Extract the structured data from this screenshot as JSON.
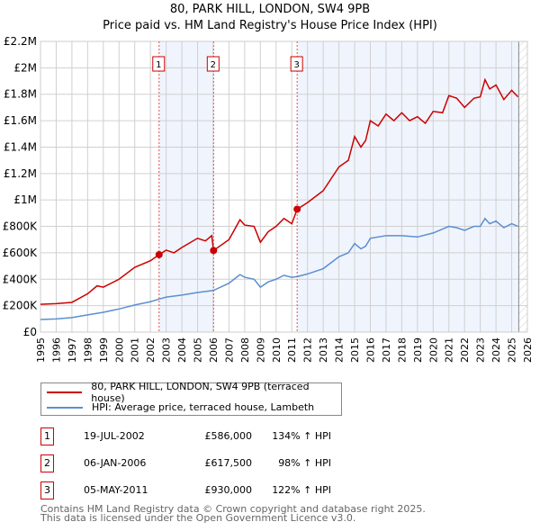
{
  "title": "80, PARK HILL, LONDON, SW4 9PB",
  "subtitle": "Price paid vs. HM Land Registry's House Price Index (HPI)",
  "chart_data": {
    "type": "line",
    "xlim": [
      1995,
      2026
    ],
    "ylim": [
      0,
      2200000
    ],
    "x_ticks": [
      "1995",
      "1996",
      "1997",
      "1998",
      "1999",
      "2000",
      "2001",
      "2002",
      "2003",
      "2004",
      "2005",
      "2006",
      "2007",
      "2008",
      "2009",
      "2010",
      "2011",
      "2012",
      "2013",
      "2014",
      "2015",
      "2016",
      "2017",
      "2018",
      "2019",
      "2020",
      "2021",
      "2022",
      "2023",
      "2024",
      "2025",
      "2026"
    ],
    "y_ticks": [
      {
        "v": 0,
        "l": "£0"
      },
      {
        "v": 200000,
        "l": "£200K"
      },
      {
        "v": 400000,
        "l": "£400K"
      },
      {
        "v": 600000,
        "l": "£600K"
      },
      {
        "v": 800000,
        "l": "£800K"
      },
      {
        "v": 1000000,
        "l": "£1M"
      },
      {
        "v": 1200000,
        "l": "£1.2M"
      },
      {
        "v": 1400000,
        "l": "£1.4M"
      },
      {
        "v": 1600000,
        "l": "£1.6M"
      },
      {
        "v": 1800000,
        "l": "£1.8M"
      },
      {
        "v": 2000000,
        "l": "£2M"
      },
      {
        "v": 2200000,
        "l": "£2.2M"
      }
    ],
    "grid": true,
    "data_end": 2025.45,
    "series": [
      {
        "name": "80, PARK HILL, LONDON, SW4 9PB (terraced house)",
        "color": "#cc0000",
        "x": [
          1995,
          1996,
          1997,
          1998,
          1998.6,
          1999,
          2000,
          2001,
          2002,
          2002.55,
          2003,
          2003.5,
          2004,
          2005,
          2005.5,
          2005.9,
          2006.02,
          2007,
          2007.7,
          2008,
          2008.6,
          2009,
          2009.5,
          2010,
          2010.5,
          2011,
          2011.34,
          2012,
          2013,
          2014,
          2014.6,
          2015,
          2015.4,
          2015.7,
          2016,
          2016.5,
          2017,
          2017.5,
          2018,
          2018.5,
          2019,
          2019.5,
          2020,
          2020.6,
          2021,
          2021.5,
          2022,
          2022.6,
          2023,
          2023.3,
          2023.6,
          2024,
          2024.5,
          2025,
          2025.4
        ],
        "y": [
          210000,
          215000,
          225000,
          290000,
          350000,
          340000,
          400000,
          490000,
          540000,
          586000,
          620000,
          600000,
          640000,
          710000,
          690000,
          730000,
          617500,
          700000,
          850000,
          810000,
          800000,
          680000,
          760000,
          800000,
          860000,
          820000,
          930000,
          980000,
          1070000,
          1250000,
          1300000,
          1480000,
          1400000,
          1450000,
          1600000,
          1560000,
          1650000,
          1600000,
          1660000,
          1600000,
          1630000,
          1580000,
          1670000,
          1660000,
          1790000,
          1770000,
          1700000,
          1770000,
          1780000,
          1910000,
          1840000,
          1870000,
          1760000,
          1830000,
          1780000
        ]
      },
      {
        "name": "HPI: Average price, terraced house, Lambeth",
        "color": "#5b8fd0",
        "x": [
          1995,
          1996,
          1997,
          1998,
          1999,
          2000,
          2001,
          2002,
          2002.55,
          2003,
          2004,
          2005,
          2006,
          2007,
          2007.7,
          2008,
          2008.6,
          2009,
          2009.5,
          2010,
          2010.5,
          2011,
          2011.34,
          2012,
          2013,
          2014,
          2014.6,
          2015,
          2015.4,
          2015.7,
          2016,
          2017,
          2018,
          2019,
          2020,
          2021,
          2021.5,
          2022,
          2022.6,
          2023,
          2023.3,
          2023.6,
          2024,
          2024.5,
          2025,
          2025.4
        ],
        "y": [
          95000,
          100000,
          110000,
          130000,
          150000,
          175000,
          205000,
          230000,
          250000,
          265000,
          280000,
          300000,
          315000,
          370000,
          435000,
          415000,
          400000,
          340000,
          380000,
          400000,
          430000,
          415000,
          420000,
          440000,
          480000,
          570000,
          600000,
          670000,
          630000,
          650000,
          710000,
          730000,
          730000,
          720000,
          750000,
          800000,
          790000,
          770000,
          800000,
          800000,
          860000,
          820000,
          840000,
          790000,
          820000,
          800000
        ]
      }
    ],
    "sales": [
      {
        "label": "1",
        "x": 2002.55,
        "y": 586000,
        "date": "19-JUL-2002",
        "price": "£586,000",
        "hpi": "134% ↑ HPI"
      },
      {
        "label": "2",
        "x": 2006.02,
        "y": 617500,
        "date": "06-JAN-2006",
        "price": "£617,500",
        "hpi": "98% ↑ HPI"
      },
      {
        "label": "3",
        "x": 2011.34,
        "y": 930000,
        "date": "05-MAY-2011",
        "price": "£930,000",
        "hpi": "122% ↑ HPI"
      }
    ]
  },
  "footer": [
    "Contains HM Land Registry data © Crown copyright and database right 2025.",
    "This data is licensed under the Open Government Licence v3.0."
  ]
}
